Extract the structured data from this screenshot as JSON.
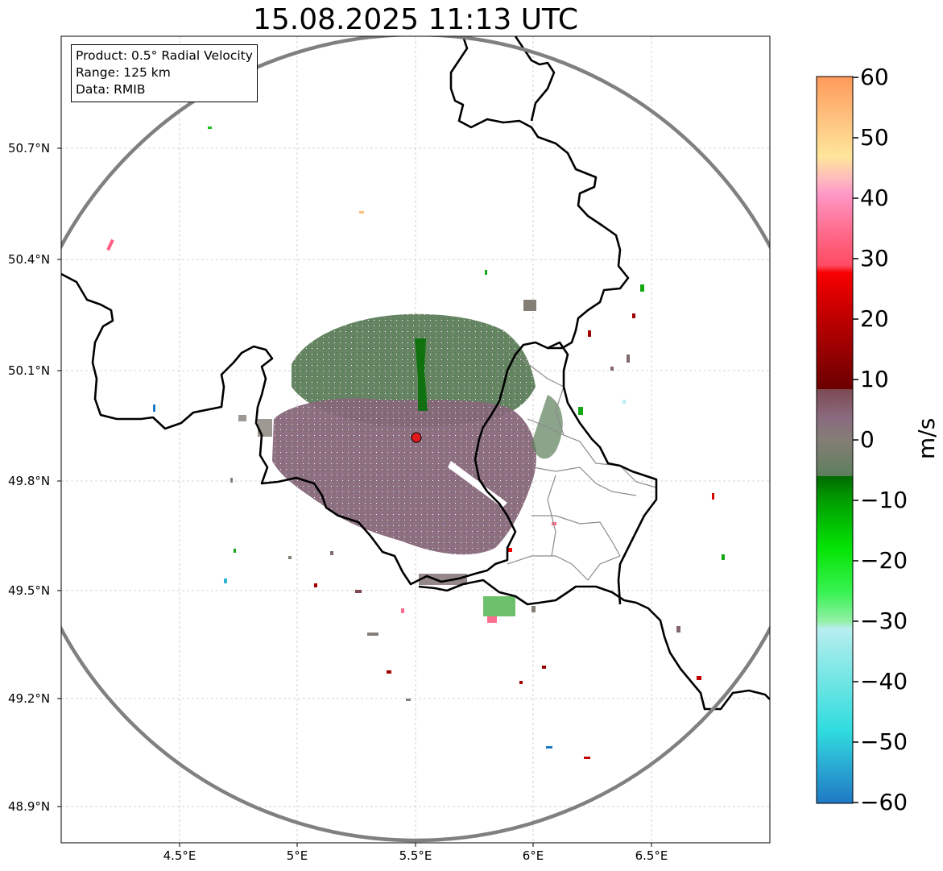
{
  "title": "15.08.2025 11:13 UTC",
  "info": {
    "product": "Product: 0.5° Radial Velocity",
    "range": "Range: 125 km",
    "data": "Data: RMIB"
  },
  "axes": {
    "lat_ticks": [
      "50.7°N",
      "50.4°N",
      "50.1°N",
      "49.8°N",
      "49.5°N",
      "49.2°N",
      "48.9°N"
    ],
    "lon_ticks": [
      "4.5°E",
      "5°E",
      "5.5°E",
      "6°E",
      "6.5°E"
    ]
  },
  "colorbar": {
    "label": "m/s",
    "min": -60,
    "max": 60,
    "ticks": [
      "60",
      "50",
      "40",
      "30",
      "20",
      "10",
      "0",
      "−10",
      "−20",
      "−30",
      "−40",
      "−50",
      "−60"
    ]
  },
  "radar_site": {
    "lon": 5.505,
    "lat": 49.914
  },
  "colors": {
    "range_ring": "#808080",
    "border": "#000000",
    "site_marker": "#e31a1c",
    "approaching_dominant": "#5e7e5e",
    "receding_dominant": "#866674"
  }
}
